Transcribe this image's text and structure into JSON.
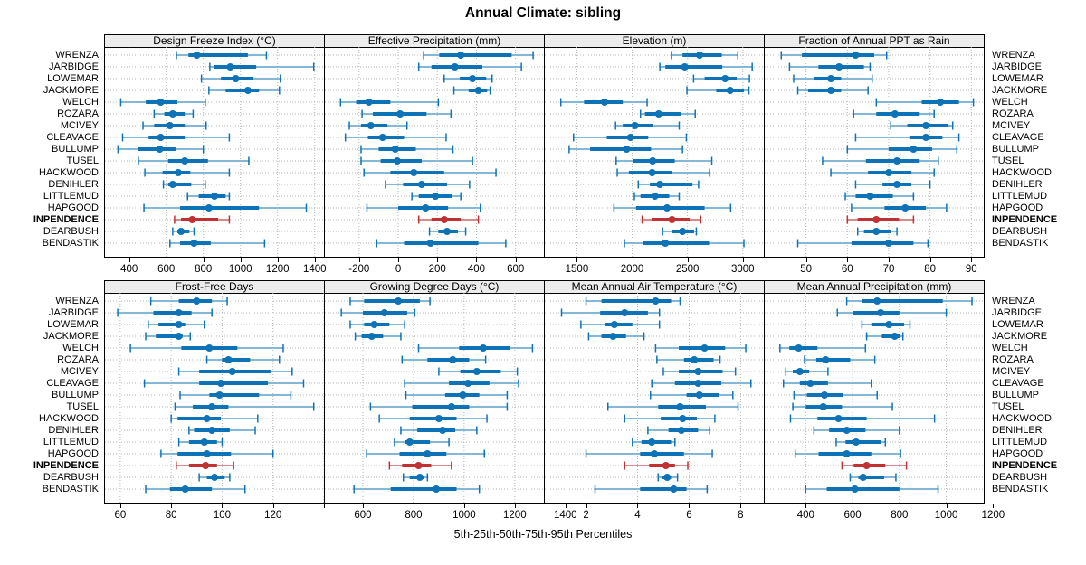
{
  "figure": {
    "title": "Annual Climate: sibling",
    "caption": "5th-25th-50th-75th-95th Percentiles"
  },
  "colors": {
    "series": "#0d73b6",
    "series_light": "#85b7d9",
    "highlight": "#c13032",
    "highlight_light": "#d98b8c",
    "strip_bg": "#ececec",
    "grid": "#b5b5b5",
    "border": "#000000"
  },
  "chart_data": {
    "type": "dot-interval-percentiles",
    "percentiles": [
      5,
      25,
      50,
      75,
      95
    ],
    "highlight_site": "INPENDENCE",
    "sites": [
      "WRENZA",
      "JARBIDGE",
      "LOWEMAR",
      "JACKMORE",
      "WELCH",
      "ROZARA",
      "MCIVEY",
      "CLEAVAGE",
      "BULLUMP",
      "TUSEL",
      "HACKWOOD",
      "DENIHLER",
      "LITTLEMUD",
      "HAPGOOD",
      "INPENDENCE",
      "DEARBUSH",
      "BENDASTIK"
    ],
    "panels": [
      {
        "title": "Design Freeze Index (°C)",
        "band": 0,
        "col": 0,
        "xticks": [
          400,
          600,
          800,
          1000,
          1200,
          1400
        ],
        "xticks_unlabeled": [],
        "xdomain": [
          270,
          1450
        ],
        "values": [
          [
            655,
            720,
            765,
            1040,
            1140
          ],
          [
            835,
            860,
            945,
            1085,
            1395
          ],
          [
            790,
            895,
            975,
            1070,
            1215
          ],
          [
            830,
            920,
            1040,
            1100,
            1210
          ],
          [
            355,
            490,
            570,
            660,
            810
          ],
          [
            535,
            590,
            635,
            700,
            745
          ],
          [
            475,
            535,
            620,
            700,
            815
          ],
          [
            365,
            505,
            570,
            700,
            940
          ],
          [
            340,
            450,
            565,
            650,
            800
          ],
          [
            450,
            610,
            700,
            825,
            1045
          ],
          [
            485,
            580,
            665,
            730,
            940
          ],
          [
            585,
            610,
            635,
            735,
            810
          ],
          [
            715,
            775,
            860,
            920,
            940
          ],
          [
            480,
            675,
            830,
            1100,
            1355
          ],
          [
            645,
            680,
            740,
            880,
            940
          ],
          [
            635,
            660,
            680,
            725,
            750
          ],
          [
            620,
            675,
            750,
            840,
            1130
          ]
        ]
      },
      {
        "title": "Effective Precipitation (mm)",
        "band": 0,
        "col": 1,
        "xticks": [
          -200,
          0,
          200,
          400,
          600
        ],
        "xticks_unlabeled": [],
        "xdomain": [
          -375,
          745
        ],
        "values": [
          [
            130,
            210,
            320,
            580,
            690
          ],
          [
            105,
            170,
            290,
            430,
            630
          ],
          [
            235,
            315,
            380,
            450,
            480
          ],
          [
            285,
            360,
            410,
            455,
            470
          ],
          [
            -295,
            -215,
            -150,
            -40,
            205
          ],
          [
            -185,
            -130,
            10,
            145,
            270
          ],
          [
            -250,
            -190,
            -140,
            -55,
            45
          ],
          [
            -270,
            -155,
            -80,
            30,
            245
          ],
          [
            -190,
            -100,
            -15,
            90,
            280
          ],
          [
            -190,
            -90,
            -5,
            120,
            380
          ],
          [
            -175,
            -40,
            80,
            235,
            500
          ],
          [
            -65,
            25,
            120,
            250,
            365
          ],
          [
            70,
            105,
            190,
            275,
            320
          ],
          [
            -160,
            0,
            140,
            255,
            420
          ],
          [
            105,
            170,
            235,
            320,
            410
          ],
          [
            160,
            205,
            250,
            305,
            345
          ],
          [
            -110,
            30,
            165,
            410,
            550
          ]
        ]
      },
      {
        "title": "Elevation (m)",
        "band": 0,
        "col": 2,
        "xticks": [
          1500,
          2000,
          2500,
          3000
        ],
        "xticks_unlabeled": [],
        "xdomain": [
          1210,
          3190
        ],
        "values": [
          [
            2355,
            2455,
            2610,
            2810,
            2955
          ],
          [
            2250,
            2300,
            2475,
            2815,
            3085
          ],
          [
            2555,
            2655,
            2840,
            2945,
            3060
          ],
          [
            2495,
            2760,
            2885,
            3010,
            3055
          ],
          [
            1355,
            1565,
            1750,
            1915,
            2135
          ],
          [
            2075,
            2115,
            2240,
            2440,
            2570
          ],
          [
            1850,
            1915,
            2025,
            2185,
            2425
          ],
          [
            1470,
            1770,
            1985,
            2145,
            2490
          ],
          [
            1430,
            1620,
            1950,
            2170,
            2455
          ],
          [
            1855,
            2010,
            2185,
            2385,
            2720
          ],
          [
            1865,
            1970,
            2180,
            2360,
            2700
          ],
          [
            2055,
            2160,
            2250,
            2545,
            2600
          ],
          [
            2020,
            2075,
            2205,
            2335,
            2425
          ],
          [
            1835,
            2035,
            2315,
            2655,
            2890
          ],
          [
            2090,
            2175,
            2360,
            2520,
            2620
          ],
          [
            2275,
            2360,
            2455,
            2560,
            2580
          ],
          [
            1930,
            2100,
            2300,
            2695,
            3010
          ]
        ]
      },
      {
        "title": "Fraction of Annual PPT as Rain",
        "band": 0,
        "col": 3,
        "xticks": [
          50,
          60,
          70,
          80,
          90
        ],
        "xticks_unlabeled": [],
        "xdomain": [
          40,
          93
        ],
        "values": [
          [
            44,
            49,
            62,
            66.5,
            69.5
          ],
          [
            46,
            53,
            58,
            64,
            65.5
          ],
          [
            47,
            52,
            56,
            58.5,
            66
          ],
          [
            48,
            50.5,
            56,
            58.5,
            65
          ],
          [
            67,
            78,
            82.5,
            87,
            90.5
          ],
          [
            61.5,
            67,
            71.5,
            77.5,
            81
          ],
          [
            70.5,
            74.5,
            79,
            84.5,
            85.5
          ],
          [
            62,
            75,
            79,
            83,
            87
          ],
          [
            60,
            70,
            76,
            80.5,
            86.5
          ],
          [
            54,
            64.5,
            72,
            77.5,
            82
          ],
          [
            56,
            65,
            70,
            75.5,
            81
          ],
          [
            62,
            68.5,
            72,
            75.5,
            80
          ],
          [
            59.5,
            62,
            65.5,
            71,
            76
          ],
          [
            61,
            69,
            74,
            79,
            84
          ],
          [
            60,
            62.5,
            67,
            72.5,
            76
          ],
          [
            62.5,
            64,
            67,
            70.5,
            72
          ],
          [
            48,
            61,
            70,
            76,
            79.5
          ]
        ]
      },
      {
        "title": "Frost-Free Days",
        "band": 1,
        "col": 0,
        "xticks": [
          60,
          80,
          100,
          120
        ],
        "xticks_unlabeled": [
          140
        ],
        "xdomain": [
          54,
          140
        ],
        "values": [
          [
            72,
            83,
            90,
            96,
            102
          ],
          [
            59,
            73,
            83,
            88,
            96
          ],
          [
            71,
            75,
            83,
            85.5,
            93
          ],
          [
            70,
            74,
            83,
            84.5,
            87.5
          ],
          [
            64,
            84,
            95,
            106,
            124
          ],
          [
            94,
            100,
            102.5,
            111,
            122.5
          ],
          [
            83,
            91,
            104,
            119,
            127.5
          ],
          [
            69.5,
            91,
            99.5,
            118,
            132
          ],
          [
            83.5,
            95,
            99,
            114.5,
            127
          ],
          [
            81.5,
            88.5,
            96,
            102.5,
            136
          ],
          [
            80,
            82.5,
            94,
            99.5,
            114
          ],
          [
            87,
            89,
            96,
            103,
            113
          ],
          [
            83,
            87,
            93,
            98,
            100
          ],
          [
            76,
            82.5,
            94,
            103.5,
            120
          ],
          [
            82,
            87,
            93.5,
            98,
            104.5
          ],
          [
            91,
            94,
            97,
            101,
            103
          ],
          [
            70,
            79.5,
            85.5,
            96,
            109
          ]
        ]
      },
      {
        "title": "Growing Degree Days (°C)",
        "band": 1,
        "col": 1,
        "xticks": [
          600,
          800,
          1000,
          1200,
          1400
        ],
        "xticks_unlabeled": [],
        "xdomain": [
          450,
          1315
        ],
        "values": [
          [
            550,
            605,
            740,
            825,
            865
          ],
          [
            515,
            600,
            685,
            775,
            805
          ],
          [
            550,
            605,
            645,
            705,
            765
          ],
          [
            570,
            595,
            635,
            680,
            750
          ],
          [
            820,
            980,
            1075,
            1180,
            1270
          ],
          [
            755,
            855,
            955,
            1020,
            1085
          ],
          [
            900,
            985,
            1050,
            1145,
            1210
          ],
          [
            765,
            940,
            1015,
            1100,
            1215
          ],
          [
            770,
            925,
            995,
            1060,
            1170
          ],
          [
            630,
            795,
            950,
            1020,
            1170
          ],
          [
            665,
            785,
            900,
            970,
            1090
          ],
          [
            750,
            815,
            915,
            965,
            1050
          ],
          [
            725,
            765,
            785,
            865,
            940
          ],
          [
            615,
            745,
            855,
            930,
            1080
          ],
          [
            705,
            755,
            820,
            870,
            950
          ],
          [
            760,
            785,
            825,
            840,
            855
          ],
          [
            565,
            710,
            890,
            970,
            1060
          ]
        ]
      },
      {
        "title": "Mean Annual Air Temperature (°C)",
        "band": 1,
        "col": 2,
        "xticks": [
          2,
          4,
          6,
          8
        ],
        "xticks_unlabeled": [],
        "xdomain": [
          0.4,
          8.9
        ],
        "values": [
          [
            2.0,
            2.6,
            4.7,
            5.3,
            5.65
          ],
          [
            1.05,
            2.55,
            3.5,
            4.4,
            4.85
          ],
          [
            1.8,
            2.75,
            3.1,
            3.8,
            4.85
          ],
          [
            2.1,
            2.6,
            3.05,
            3.55,
            4.25
          ],
          [
            4.7,
            5.6,
            6.6,
            7.4,
            8.2
          ],
          [
            4.75,
            5.8,
            6.2,
            6.95,
            7.2
          ],
          [
            5.0,
            5.6,
            6.35,
            7.3,
            7.8
          ],
          [
            4.55,
            5.45,
            6.35,
            7.25,
            8.4
          ],
          [
            4.5,
            5.9,
            6.4,
            7.15,
            7.7
          ],
          [
            2.85,
            4.8,
            5.65,
            6.65,
            7.9
          ],
          [
            3.5,
            4.9,
            5.75,
            6.3,
            7.0
          ],
          [
            4.4,
            5.2,
            5.7,
            6.35,
            6.8
          ],
          [
            3.8,
            4.15,
            4.55,
            5.3,
            5.45
          ],
          [
            2.0,
            4.1,
            4.65,
            5.8,
            6.9
          ],
          [
            3.5,
            4.45,
            5.1,
            5.45,
            5.95
          ],
          [
            4.8,
            4.95,
            5.15,
            5.3,
            5.55
          ],
          [
            2.35,
            4.1,
            5.4,
            5.9,
            6.7
          ]
        ]
      },
      {
        "title": "Mean Annual Precipitation (mm)",
        "band": 1,
        "col": 3,
        "xticks": [
          400,
          600,
          800,
          1000,
          1200
        ],
        "xticks_unlabeled": [],
        "xdomain": [
          225,
          1160
        ],
        "values": [
          [
            575,
            640,
            705,
            985,
            1110
          ],
          [
            535,
            600,
            720,
            800,
            1000
          ],
          [
            640,
            680,
            755,
            820,
            845
          ],
          [
            660,
            725,
            780,
            805,
            815
          ],
          [
            290,
            330,
            370,
            450,
            655
          ],
          [
            395,
            445,
            485,
            590,
            695
          ],
          [
            315,
            345,
            375,
            415,
            495
          ],
          [
            305,
            375,
            420,
            495,
            680
          ],
          [
            350,
            405,
            480,
            560,
            705
          ],
          [
            345,
            400,
            475,
            555,
            770
          ],
          [
            335,
            450,
            540,
            660,
            950
          ],
          [
            435,
            500,
            575,
            655,
            800
          ],
          [
            530,
            570,
            615,
            720,
            740
          ],
          [
            355,
            455,
            575,
            680,
            805
          ],
          [
            555,
            605,
            660,
            740,
            830
          ],
          [
            590,
            625,
            645,
            735,
            785
          ],
          [
            400,
            490,
            610,
            800,
            965
          ]
        ]
      }
    ]
  }
}
